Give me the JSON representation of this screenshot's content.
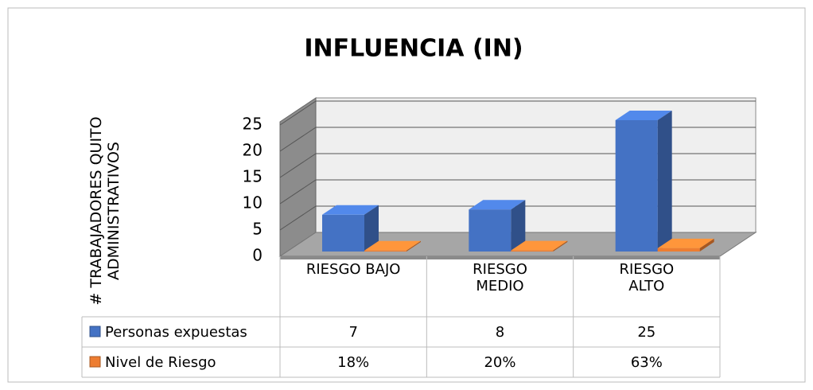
{
  "chart_data": {
    "type": "bar3d",
    "title": "INFLUENCIA (IN)",
    "y_label": "# TRABAJADORES QUITO ADMINISTRATIVOS",
    "categories": [
      "RIESGO BAJO",
      "RIESGO MEDIO",
      "RIESGO ALTO"
    ],
    "series": [
      {
        "name": "Personas expuestas",
        "color": "#4472c4",
        "values": [
          7,
          8,
          25
        ]
      },
      {
        "name": "Nivel de Riesgo",
        "color": "#ed7d31",
        "values": [
          0.18,
          0.2,
          0.63
        ],
        "value_labels": [
          "18%",
          "20%",
          "63%"
        ]
      }
    ],
    "ylim": [
      0,
      25
    ],
    "yticks": [
      0,
      5,
      10,
      15,
      20,
      25
    ],
    "grid": true,
    "data_table": true
  }
}
